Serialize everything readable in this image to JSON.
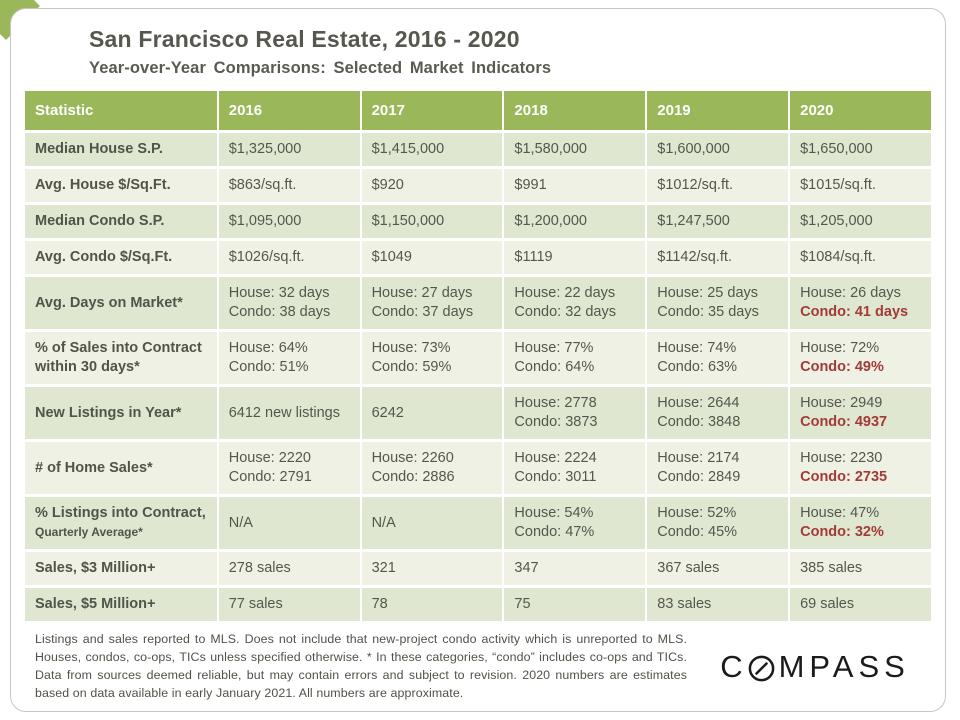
{
  "slide": {
    "title": "San Francisco Real Estate, 2016 - 2020",
    "subtitle": "Year-over-Year Comparisons: Selected Market Indicators"
  },
  "table": {
    "columns": [
      "Statistic",
      "2016",
      "2017",
      "2018",
      "2019",
      "2020"
    ],
    "rows": [
      {
        "label": "Median House S.P.",
        "cells": [
          [
            "$1,325,000"
          ],
          [
            "$1,415,000"
          ],
          [
            "$1,580,000"
          ],
          [
            "$1,600,000"
          ],
          [
            "$1,650,000"
          ]
        ]
      },
      {
        "label": "Avg. House $/Sq.Ft.",
        "cells": [
          [
            "$863/sq.ft."
          ],
          [
            "$920"
          ],
          [
            "$991"
          ],
          [
            "$1012/sq.ft."
          ],
          [
            "$1015/sq.ft."
          ]
        ]
      },
      {
        "label": "Median Condo S.P.",
        "cells": [
          [
            "$1,095,000"
          ],
          [
            "$1,150,000"
          ],
          [
            "$1,200,000"
          ],
          [
            "$1,247,500"
          ],
          [
            "$1,205,000"
          ]
        ]
      },
      {
        "label": "Avg. Condo $/Sq.Ft.",
        "cells": [
          [
            "$1026/sq.ft."
          ],
          [
            "$1049"
          ],
          [
            "$1119"
          ],
          [
            "$1142/sq.ft."
          ],
          [
            "$1084/sq.ft."
          ]
        ]
      },
      {
        "label": "Avg. Days on Market*",
        "cells": [
          [
            "House: 32 days",
            "Condo: 38 days"
          ],
          [
            "House: 27 days",
            "Condo: 37 days"
          ],
          [
            "House: 22 days",
            "Condo: 32 days"
          ],
          [
            "House: 25 days",
            "Condo: 35 days"
          ],
          [
            "House: 26 days",
            {
              "text": "Condo: 41 days",
              "red": true
            }
          ]
        ]
      },
      {
        "label": "% of Sales into Contract within 30 days*",
        "cells": [
          [
            "House: 64%",
            "Condo: 51%"
          ],
          [
            "House: 73%",
            "Condo: 59%"
          ],
          [
            "House: 77%",
            "Condo: 64%"
          ],
          [
            "House: 74%",
            "Condo: 63%"
          ],
          [
            "House: 72%",
            {
              "text": "Condo: 49%",
              "red": true
            }
          ]
        ]
      },
      {
        "label": "New Listings in Year*",
        "cells": [
          [
            "6412 new listings"
          ],
          [
            "6242"
          ],
          [
            "House: 2778",
            "Condo: 3873"
          ],
          [
            "House: 2644",
            "Condo: 3848"
          ],
          [
            "House: 2949",
            {
              "text": "Condo: 4937",
              "red": true
            }
          ]
        ]
      },
      {
        "label": "# of Home Sales*",
        "cells": [
          [
            "House: 2220",
            "Condo: 2791"
          ],
          [
            "House: 2260",
            "Condo: 2886"
          ],
          [
            "House: 2224",
            "Condo: 3011"
          ],
          [
            "House: 2174",
            "Condo: 2849"
          ],
          [
            "House: 2230",
            {
              "text": "Condo: 2735",
              "red": true
            }
          ]
        ]
      },
      {
        "label": "% Listings into Contract,",
        "label_small": "Quarterly Average*",
        "cells": [
          [
            "N/A"
          ],
          [
            "N/A"
          ],
          [
            "House: 54%",
            "Condo: 47%"
          ],
          [
            "House: 52%",
            "Condo: 45%"
          ],
          [
            "House: 47%",
            {
              "text": "Condo: 32%",
              "red": true
            }
          ]
        ]
      },
      {
        "label": "Sales, $3 Million+",
        "cells": [
          [
            "278 sales"
          ],
          [
            "321"
          ],
          [
            "347"
          ],
          [
            "367 sales"
          ],
          [
            "385 sales"
          ]
        ]
      },
      {
        "label": "Sales, $5 Million+",
        "cells": [
          [
            "77 sales"
          ],
          [
            "78"
          ],
          [
            "75"
          ],
          [
            "83 sales"
          ],
          [
            "69 sales"
          ]
        ]
      }
    ]
  },
  "footnote": "Listings and sales reported to MLS. Does not include that new-project condo activity which is unreported to MLS. Houses, condos, co-ops, TICs unless specified otherwise. * In these categories, “condo” includes co-ops and TICs. Data from sources deemed reliable, but may contain errors and subject to revision. 2020 numbers are estimates based on data available in early January 2021. All numbers are approximate.",
  "logo": {
    "part1": "C",
    "part2": "MPASS",
    "o_icon": "compass-slashed-o-icon"
  },
  "colors": {
    "header_green": "#9ab85a",
    "row_dark": "#dfe7d0",
    "row_light": "#eef1e4",
    "text_gray": "#54574c",
    "red": "#a23b38",
    "logo_black": "#1b1b1b"
  }
}
